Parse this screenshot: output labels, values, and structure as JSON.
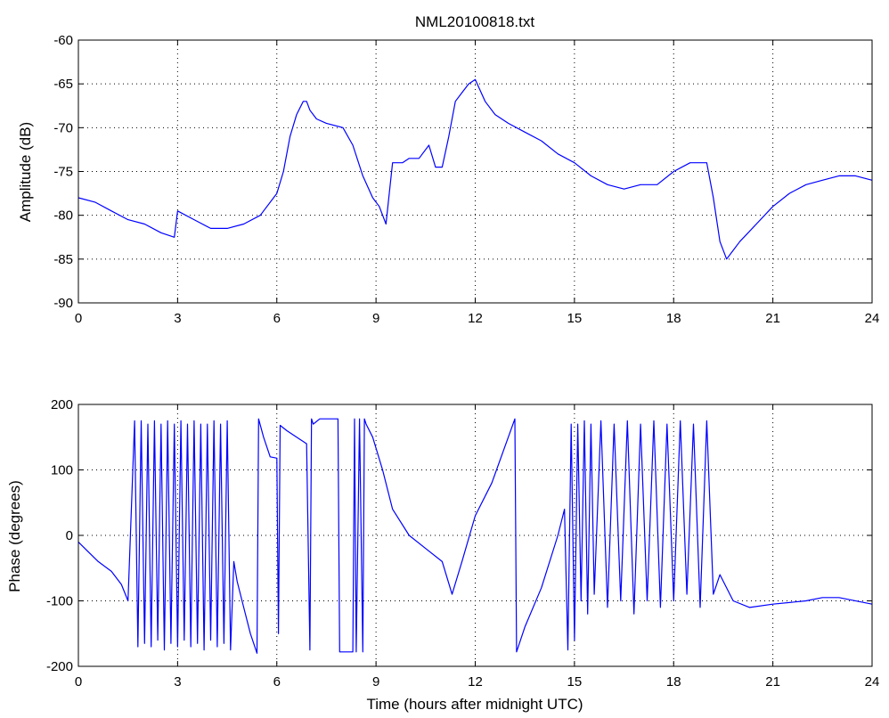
{
  "chart_data": [
    {
      "type": "line",
      "title": "NML20100818.txt",
      "xlabel": "",
      "ylabel": "Amplitude (dB)",
      "xlim": [
        0,
        24
      ],
      "ylim": [
        -90,
        -60
      ],
      "xticks": [
        0,
        3,
        6,
        9,
        12,
        15,
        18,
        21,
        24
      ],
      "yticks": [
        -90,
        -85,
        -80,
        -75,
        -70,
        -65,
        -60
      ],
      "grid": true,
      "color": "#0000ff",
      "series": [
        {
          "x": [
            0,
            0.5,
            1,
            1.5,
            2,
            2.5,
            2.9,
            3,
            3.5,
            4,
            4.5,
            5,
            5.5,
            6,
            6.2,
            6.4,
            6.6,
            6.8,
            6.9,
            7,
            7.2,
            7.5,
            8,
            8.3,
            8.6,
            8.9,
            9.1,
            9.3,
            9.5,
            9.6,
            9.8,
            10,
            10.3,
            10.6,
            10.8,
            11,
            11.2,
            11.4,
            11.6,
            11.8,
            12,
            12.3,
            12.6,
            13,
            13.5,
            14,
            14.5,
            15,
            15.5,
            16,
            16.5,
            17,
            17.5,
            18,
            18.5,
            19,
            19.2,
            19.4,
            19.6,
            19.8,
            20,
            20.5,
            21,
            21.5,
            22,
            22.5,
            23,
            23.5,
            24
          ],
          "y": [
            -78,
            -78.5,
            -79.5,
            -80.5,
            -81,
            -82,
            -82.5,
            -79.5,
            -80.5,
            -81.5,
            -81.5,
            -81,
            -80,
            -77.5,
            -75,
            -71,
            -68.5,
            -67,
            -67,
            -68,
            -69,
            -69.5,
            -70,
            -72,
            -75.5,
            -78,
            -79,
            -81,
            -74,
            -74,
            -74,
            -73.5,
            -73.5,
            -72,
            -74.5,
            -74.5,
            -71,
            -67,
            -66,
            -65,
            -64.5,
            -67,
            -68.5,
            -69.5,
            -70.5,
            -71.5,
            -73,
            -74,
            -75.5,
            -76.5,
            -77,
            -76.5,
            -76.5,
            -75,
            -74,
            -74,
            -78,
            -83,
            -85,
            -84,
            -83,
            -81,
            -79,
            -77.5,
            -76.5,
            -76,
            -75.5,
            -75.5,
            -76
          ]
        }
      ]
    },
    {
      "type": "line",
      "title": "",
      "xlabel": "Time (hours after midnight UTC)",
      "ylabel": "Phase (degrees)",
      "xlim": [
        0,
        24
      ],
      "ylim": [
        -200,
        200
      ],
      "xticks": [
        0,
        3,
        6,
        9,
        12,
        15,
        18,
        21,
        24
      ],
      "yticks": [
        -200,
        -100,
        0,
        100,
        200
      ],
      "grid": true,
      "color": "#0000ff",
      "series": [
        {
          "x": [
            0,
            0.3,
            0.6,
            1,
            1.3,
            1.5,
            1.7,
            1.8,
            1.9,
            2.0,
            2.1,
            2.2,
            2.3,
            2.4,
            2.5,
            2.6,
            2.7,
            2.8,
            2.9,
            3.0,
            3.1,
            3.2,
            3.3,
            3.4,
            3.5,
            3.6,
            3.7,
            3.8,
            3.9,
            4.0,
            4.1,
            4.2,
            4.3,
            4.4,
            4.5,
            4.6,
            4.7,
            4.8,
            5.0,
            5.2,
            5.4,
            5.45,
            5.6,
            5.8,
            6.0,
            6.05,
            6.1,
            6.3,
            6.6,
            6.9,
            7.0,
            7.05,
            7.1,
            7.3,
            7.6,
            7.85,
            7.9,
            8.3,
            8.35,
            8.4,
            8.5,
            8.6,
            8.65,
            8.7,
            8.9,
            9.2,
            9.5,
            10,
            10.5,
            11,
            11.3,
            11.6,
            12,
            12.5,
            13,
            13.2,
            13.25,
            13.5,
            14,
            14.5,
            14.7,
            14.8,
            14.9,
            15.0,
            15.1,
            15.2,
            15.3,
            15.4,
            15.5,
            15.6,
            15.8,
            16.0,
            16.2,
            16.4,
            16.6,
            16.8,
            17.0,
            17.2,
            17.4,
            17.6,
            17.8,
            18.0,
            18.2,
            18.4,
            18.6,
            18.8,
            19.0,
            19.2,
            19.4,
            19.8,
            20.3,
            21,
            22,
            22.5,
            23,
            24
          ],
          "y": [
            -10,
            -25,
            -40,
            -55,
            -75,
            -100,
            175,
            -170,
            175,
            -165,
            170,
            -170,
            175,
            -160,
            170,
            -175,
            175,
            -165,
            170,
            -170,
            175,
            -160,
            170,
            -170,
            175,
            -165,
            170,
            -175,
            170,
            -160,
            175,
            -170,
            170,
            -165,
            175,
            -175,
            -40,
            -70,
            -110,
            -150,
            -180,
            178,
            150,
            120,
            118,
            -150,
            168,
            160,
            150,
            140,
            -175,
            178,
            170,
            178,
            178,
            178,
            -178,
            -178,
            178,
            -178,
            178,
            -178,
            178,
            170,
            150,
            100,
            40,
            0,
            -20,
            -40,
            -90,
            -40,
            30,
            80,
            150,
            178,
            -178,
            -140,
            -80,
            0,
            40,
            -175,
            170,
            -160,
            170,
            -100,
            175,
            -120,
            170,
            -90,
            175,
            -110,
            170,
            -100,
            175,
            -120,
            170,
            -100,
            175,
            -110,
            170,
            -100,
            175,
            -90,
            170,
            -110,
            175,
            -90,
            -60,
            -100,
            -110,
            -105,
            -100,
            -95,
            -95,
            -105
          ]
        }
      ]
    }
  ]
}
